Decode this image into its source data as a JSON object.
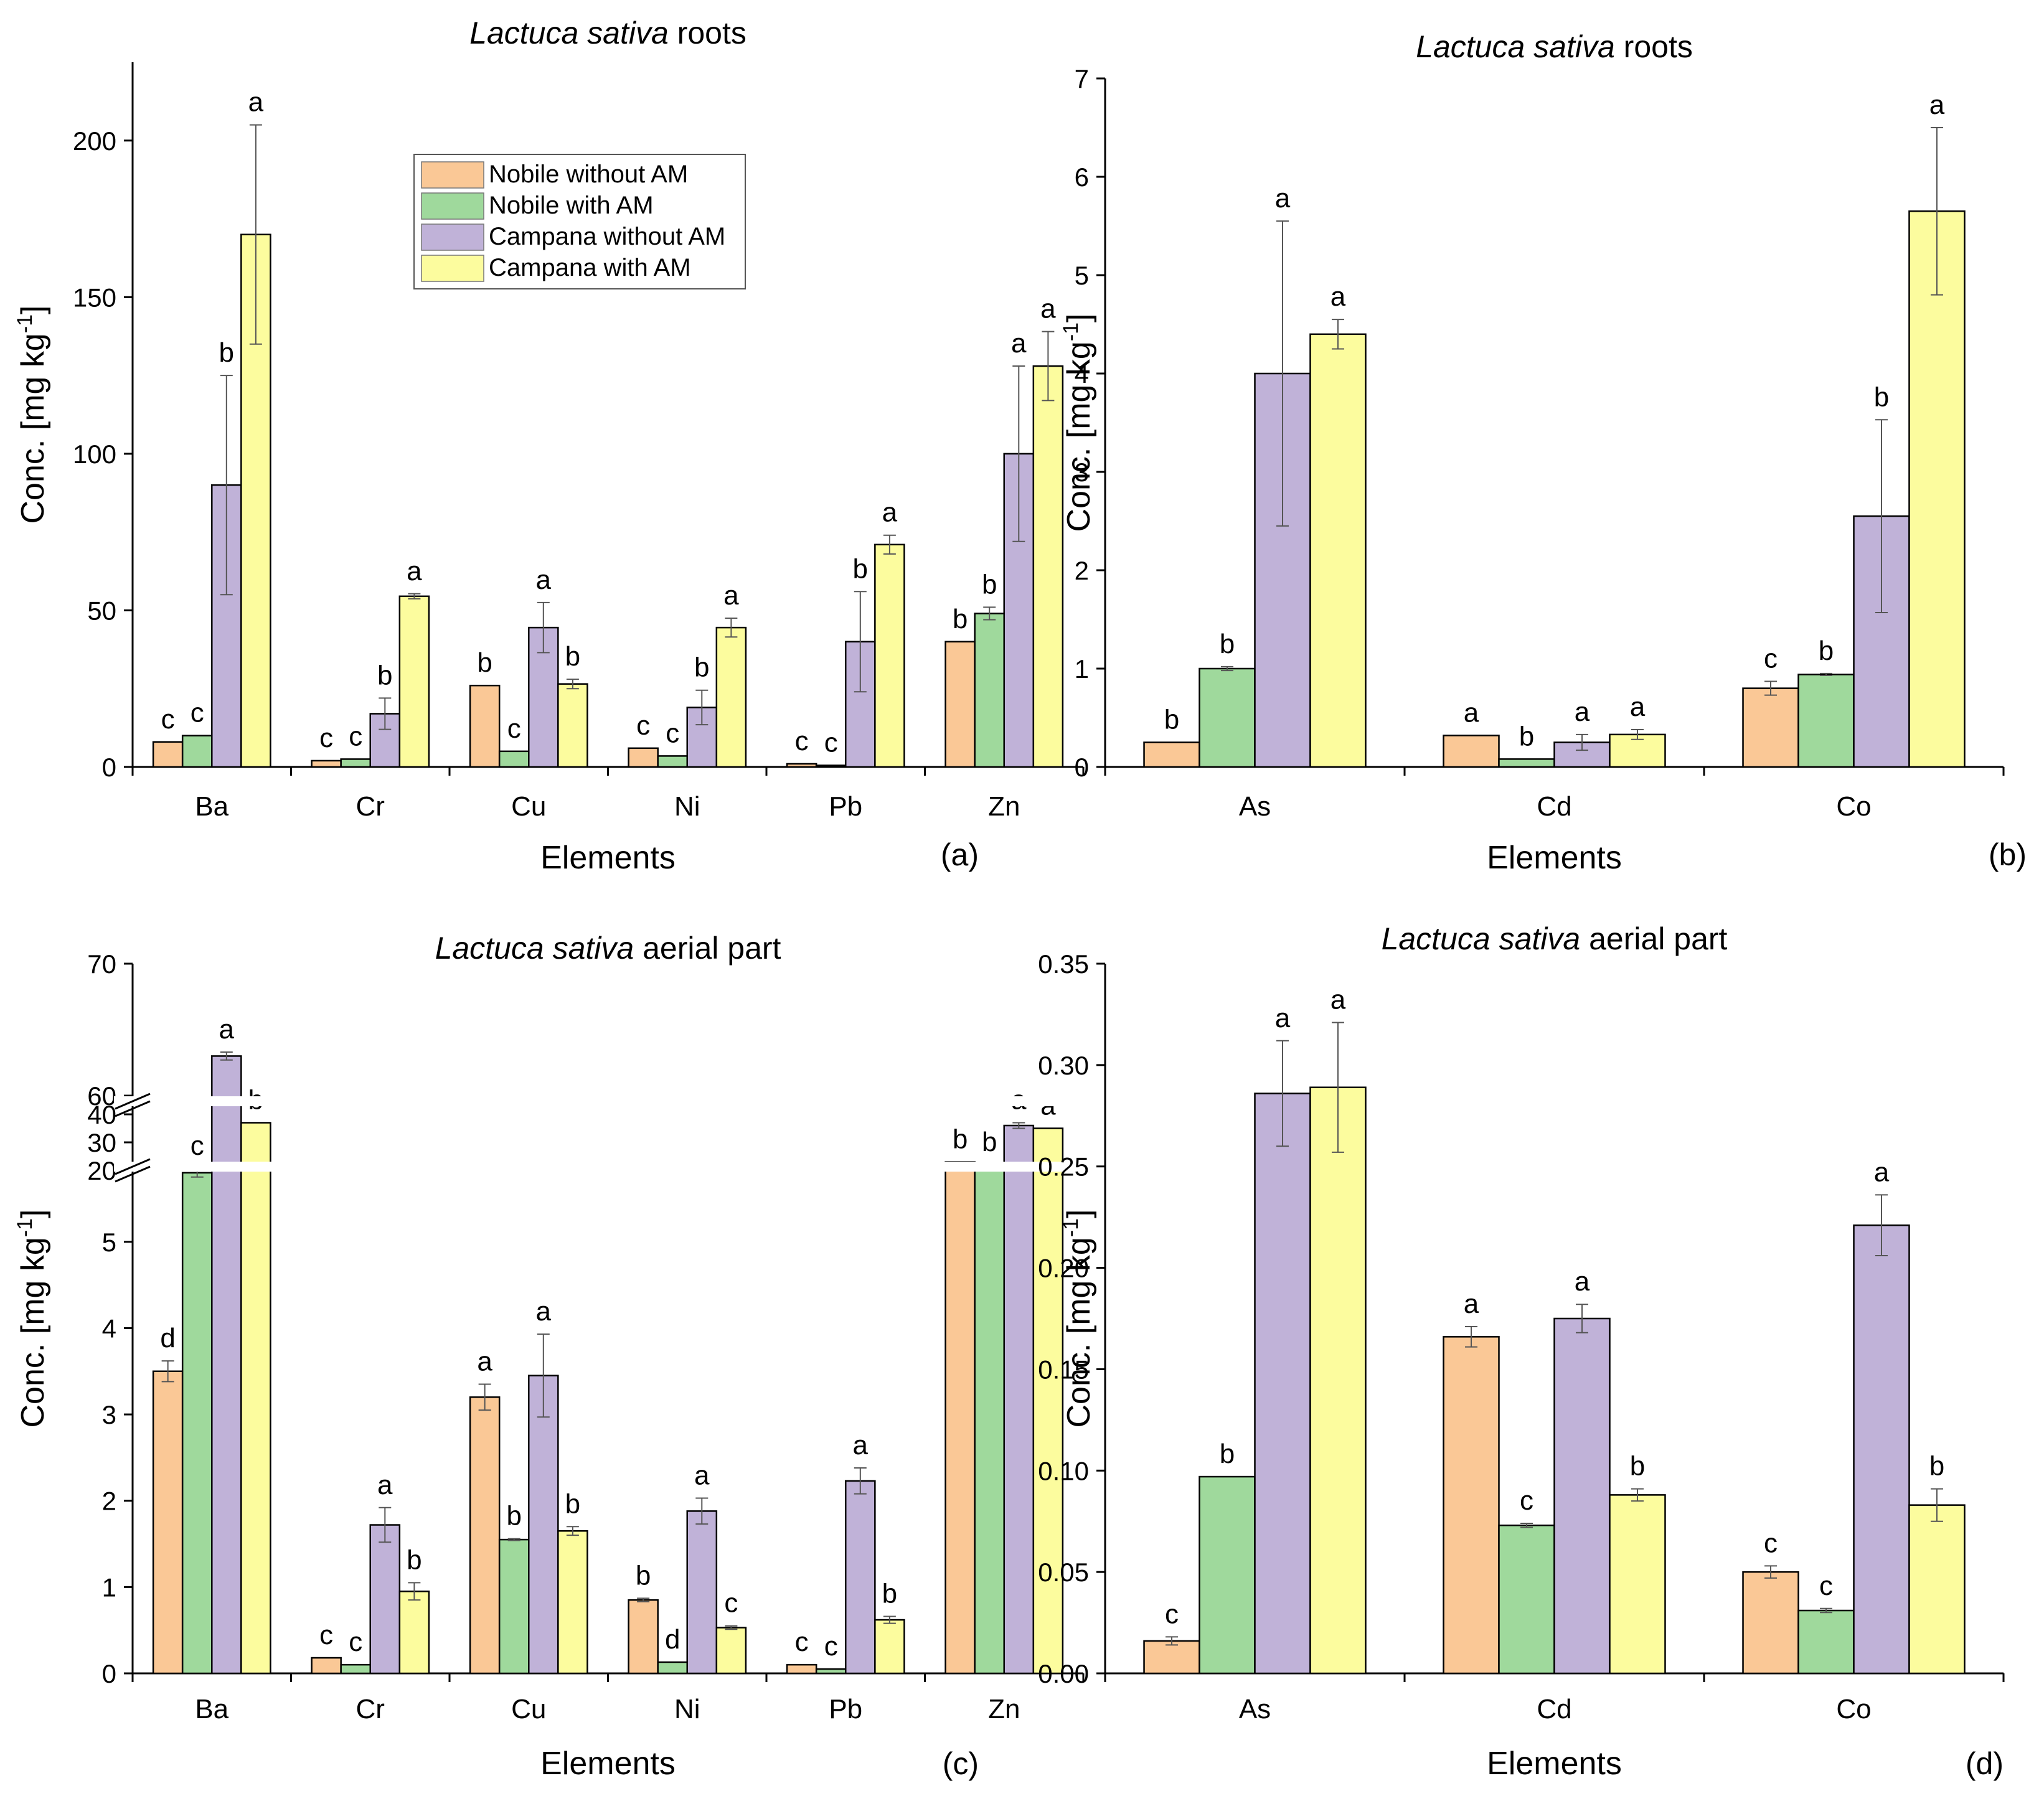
{
  "series_names": [
    "Nobile without AM",
    "Nobile with AM",
    "Campana without AM",
    "Campana with AM"
  ],
  "series_colors": [
    "#fac896",
    "#9fd99c",
    "#c0b2d8",
    "#fcfc9e"
  ],
  "panels": [
    {
      "id": "a",
      "title_italic": "Lactuca sativa",
      "title_rest": " roots",
      "ylabel": "Conc. [mg kg",
      "ylabel_sup": "-1",
      "ylabel_end": "]",
      "xlabel": "Elements",
      "panel_label": "(a)",
      "chart_data": {
        "type": "bar",
        "categories": [
          "Ba",
          "Cr",
          "Cu",
          "Ni",
          "Pb",
          "Zn"
        ],
        "ylim": [
          0,
          225
        ],
        "yticks": [
          0,
          50,
          100,
          150,
          200
        ],
        "ytick_labels": [
          "0",
          "50",
          "100",
          "150",
          "200"
        ],
        "series": [
          {
            "name": "Nobile without AM",
            "values": [
              8,
              2,
              26,
              6,
              1,
              40
            ],
            "errors": [
              0,
              0,
              0,
              0,
              0,
              0
            ],
            "letters": [
              "c",
              "c",
              "b",
              "c",
              "c",
              "b"
            ]
          },
          {
            "name": "Nobile with AM",
            "values": [
              10,
              2.5,
              5,
              3.5,
              0.5,
              49
            ],
            "errors": [
              0,
              0,
              0,
              0,
              0,
              2
            ],
            "letters": [
              "c",
              "c",
              "c",
              "c",
              "c",
              "b"
            ]
          },
          {
            "name": "Campana without AM",
            "values": [
              90,
              17,
              44.5,
              19,
              40,
              100
            ],
            "errors": [
              35,
              5,
              8,
              5.5,
              16,
              28
            ],
            "letters": [
              "b",
              "b",
              "a",
              "b",
              "b",
              "a"
            ]
          },
          {
            "name": "Campana with AM",
            "values": [
              170,
              54.5,
              26.5,
              44.5,
              71,
              128
            ],
            "errors": [
              35,
              0.8,
              1.5,
              3,
              3,
              11
            ],
            "letters": [
              "a",
              "a",
              "b",
              "a",
              "a",
              "a"
            ]
          }
        ]
      }
    },
    {
      "id": "b",
      "title_italic": "Lactuca sativa",
      "title_rest": " roots",
      "ylabel": "Conc. [mg kg",
      "ylabel_sup": "-1",
      "ylabel_end": "]",
      "xlabel": "Elements",
      "panel_label": "(b)",
      "chart_data": {
        "type": "bar",
        "categories": [
          "As",
          "Cd",
          "Co"
        ],
        "ylim": [
          0,
          7
        ],
        "yticks": [
          0,
          1,
          2,
          3,
          4,
          5,
          6,
          7
        ],
        "ytick_labels": [
          "0",
          "1",
          "2",
          "3",
          "4",
          "5",
          "6",
          "7"
        ],
        "series": [
          {
            "name": "Nobile without AM",
            "values": [
              0.25,
              0.32,
              0.8
            ],
            "errors": [
              0,
              0,
              0.07
            ],
            "letters": [
              "b",
              "a",
              "c"
            ]
          },
          {
            "name": "Nobile with AM",
            "values": [
              1.0,
              0.08,
              0.94
            ],
            "errors": [
              0.02,
              0,
              0.01
            ],
            "letters": [
              "b",
              "b",
              "b"
            ]
          },
          {
            "name": "Campana without AM",
            "values": [
              4.0,
              0.25,
              2.55
            ],
            "errors": [
              1.55,
              0.08,
              0.98
            ],
            "letters": [
              "a",
              "a",
              "b"
            ]
          },
          {
            "name": "Campana with AM",
            "values": [
              4.4,
              0.33,
              5.65
            ],
            "errors": [
              0.15,
              0.05,
              0.85
            ],
            "letters": [
              "a",
              "a",
              "a"
            ]
          }
        ]
      }
    },
    {
      "id": "c",
      "title_italic": "Lactuca sativa",
      "title_rest": " aerial part",
      "ylabel": "Conc. [mg kg",
      "ylabel_sup": "-1",
      "ylabel_end": "]",
      "xlabel": "Elements",
      "panel_label": "(c)",
      "chart_data": {
        "type": "bar",
        "broken_axis": true,
        "categories": [
          "Ba",
          "Cr",
          "Cu",
          "Ni",
          "Pb",
          "Zn"
        ],
        "segments": [
          {
            "range": [
              0,
              5.9
            ],
            "yticks": [
              0,
              1,
              2,
              3,
              4,
              5
            ],
            "ytick_labels": [
              "0",
              "1",
              "2",
              "3",
              "4",
              "5"
            ]
          },
          {
            "range": [
              20,
              40
            ],
            "yticks": [
              20,
              30,
              40
            ],
            "ytick_labels": [
              "20",
              "30",
              "40"
            ]
          },
          {
            "range": [
              60,
              70
            ],
            "yticks": [
              60,
              70
            ],
            "ytick_labels": [
              "60",
              "70"
            ]
          }
        ],
        "series": [
          {
            "name": "Nobile without AM",
            "values": [
              3.5,
              0.18,
              3.2,
              0.85,
              0.1,
              23
            ],
            "errors": [
              0.12,
              0,
              0.15,
              0.02,
              0,
              0
            ],
            "letters": [
              "d",
              "c",
              "a",
              "b",
              "c",
              "b"
            ]
          },
          {
            "name": "Nobile with AM",
            "values": [
              5.8,
              0.1,
              1.55,
              0.13,
              0.05,
              22
            ],
            "errors": [
              0.05,
              0,
              0.01,
              0,
              0,
              0
            ],
            "letters": [
              "c",
              "c",
              "b",
              "d",
              "c",
              "b"
            ]
          },
          {
            "name": "Campana without AM",
            "values": [
              63,
              1.72,
              3.45,
              1.88,
              2.23,
              36
            ],
            "errors": [
              0.3,
              0.2,
              0.48,
              0.15,
              0.15,
              1
            ],
            "letters": [
              "a",
              "a",
              "a",
              "a",
              "a",
              "a"
            ]
          },
          {
            "name": "Campana with AM",
            "values": [
              37,
              0.95,
              1.65,
              0.53,
              0.62,
              35
            ],
            "errors": [
              0,
              0.1,
              0.05,
              0.02,
              0.04,
              0
            ],
            "letters": [
              "b",
              "b",
              "b",
              "c",
              "b",
              "a"
            ]
          }
        ]
      }
    },
    {
      "id": "d",
      "title_italic": "Lactuca sativa",
      "title_rest": " aerial part",
      "ylabel": "Conc. [mg kg",
      "ylabel_sup": "-1",
      "ylabel_end": "]",
      "xlabel": "Elements",
      "panel_label": "(d)",
      "chart_data": {
        "type": "bar",
        "categories": [
          "As",
          "Cd",
          "Co"
        ],
        "ylim": [
          0,
          0.35
        ],
        "yticks": [
          0,
          0.05,
          0.1,
          0.15,
          0.2,
          0.25,
          0.3,
          0.35
        ],
        "ytick_labels": [
          "0.00",
          "0.05",
          "0.10",
          "0.15",
          "0.20",
          "0.25",
          "0.30",
          "0.35"
        ],
        "series": [
          {
            "name": "Nobile without AM",
            "values": [
              0.016,
              0.166,
              0.05
            ],
            "errors": [
              0.002,
              0.005,
              0.003
            ],
            "letters": [
              "c",
              "a",
              "c"
            ]
          },
          {
            "name": "Nobile with AM",
            "values": [
              0.097,
              0.073,
              0.031
            ],
            "errors": [
              0,
              0.001,
              0.001
            ],
            "letters": [
              "b",
              "c",
              "c"
            ]
          },
          {
            "name": "Campana without AM",
            "values": [
              0.286,
              0.175,
              0.221
            ],
            "errors": [
              0.026,
              0.007,
              0.015
            ],
            "letters": [
              "a",
              "a",
              "a"
            ]
          },
          {
            "name": "Campana with AM",
            "values": [
              0.289,
              0.088,
              0.083
            ],
            "errors": [
              0.032,
              0.003,
              0.008
            ],
            "letters": [
              "a",
              "b",
              "b"
            ]
          }
        ]
      }
    }
  ]
}
